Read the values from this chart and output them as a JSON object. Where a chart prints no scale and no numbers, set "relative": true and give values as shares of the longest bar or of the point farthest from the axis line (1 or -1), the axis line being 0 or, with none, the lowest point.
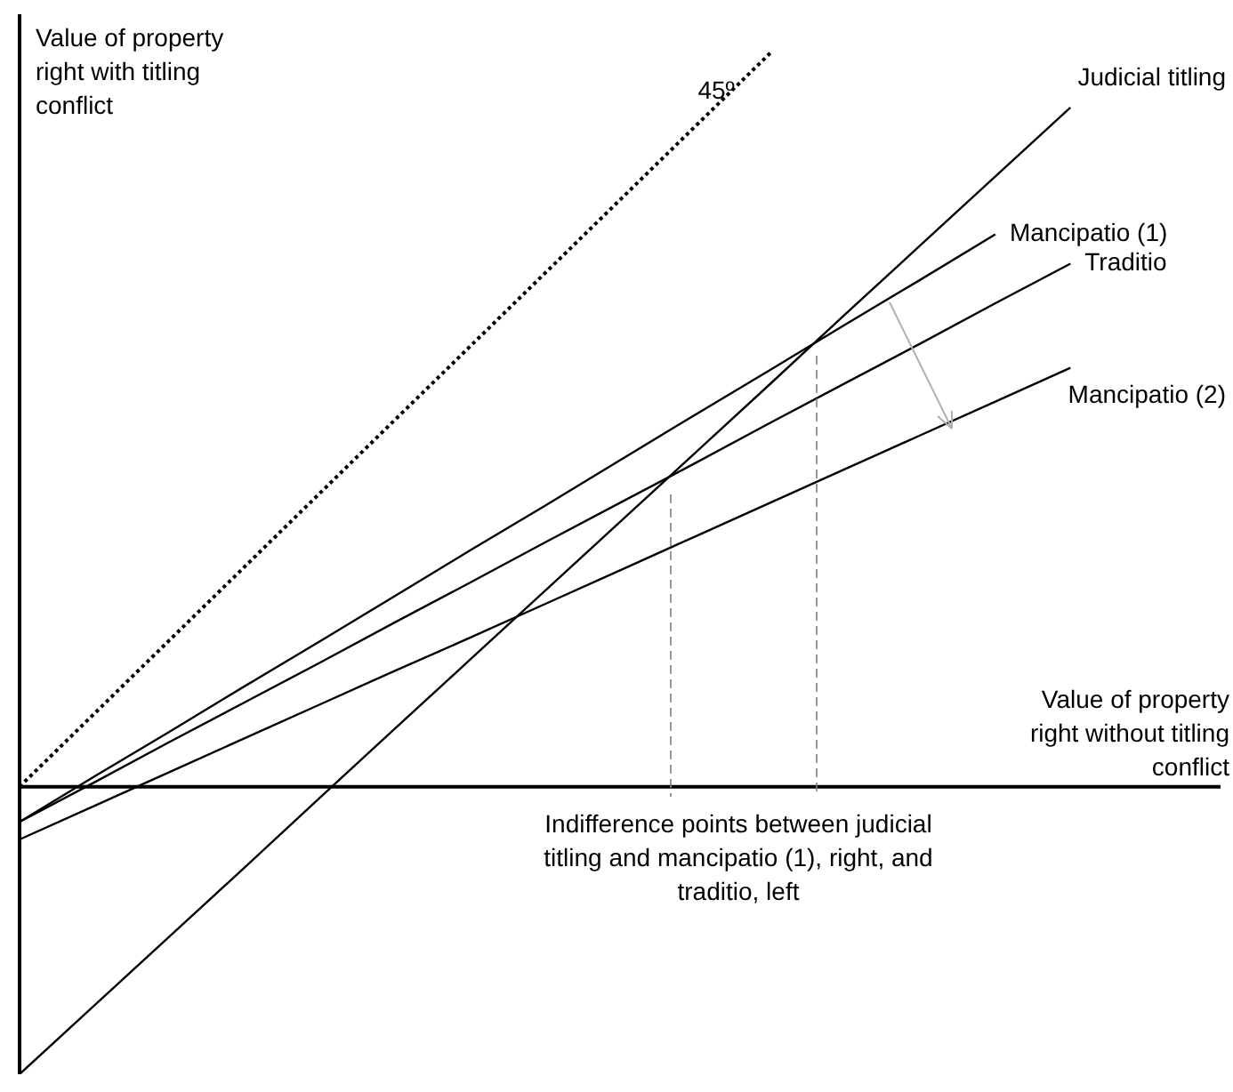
{
  "chart_data": {
    "type": "line",
    "relative": true,
    "xlabel": "Value of property right without titling conflict",
    "ylabel": "Value of property right with titling conflict",
    "categories": [
      null,
      null,
      null,
      null,
      null,
      null,
      null,
      null,
      null,
      null,
      null,
      null,
      null,
      null,
      null,
      null,
      null
    ],
    "grid": false,
    "legend": false,
    "marker": "none",
    "series": [
      {
        "name": "45º",
        "color": "#000000",
        "line_style": "dotted",
        "values": [
          0,
          0.1,
          0.2,
          0.3,
          0.4,
          0.5,
          0.6,
          0.7,
          0.8,
          0.9,
          1.0,
          null,
          null,
          null,
          null,
          null,
          null
        ]
      },
      {
        "name": "Judicial titling",
        "color": "#000000",
        "values": [
          -0.392,
          -0.298,
          -0.204,
          -0.11,
          -0.015,
          0.079,
          0.173,
          0.267,
          0.361,
          0.455,
          0.549,
          0.644,
          0.738,
          0.832,
          0.926,
          null,
          null
        ]
      },
      {
        "name": "Mancipatio (1)",
        "color": "#000000",
        "values": [
          -0.048,
          0.014,
          0.075,
          0.137,
          0.198,
          0.26,
          0.322,
          0.383,
          0.445,
          0.507,
          0.568,
          0.63,
          0.691,
          0.753,
          null,
          null,
          null
        ]
      },
      {
        "name": "Traditio",
        "color": "#000000",
        "values": [
          -0.048,
          0.006,
          0.061,
          0.115,
          0.169,
          0.224,
          0.278,
          0.333,
          0.387,
          0.441,
          0.496,
          0.55,
          0.604,
          0.659,
          0.713,
          null,
          null
        ]
      },
      {
        "name": "Mancipatio (2)",
        "color": "#000000",
        "values": [
          -0.072,
          -0.026,
          0.02,
          0.066,
          0.112,
          0.158,
          0.203,
          0.249,
          0.295,
          0.341,
          0.387,
          0.433,
          0.479,
          0.525,
          0.571,
          null,
          null
        ]
      }
    ],
    "annotations": [
      "Indifference points between judicial titling and mancipatio (1), right, and traditio, left"
    ]
  }
}
